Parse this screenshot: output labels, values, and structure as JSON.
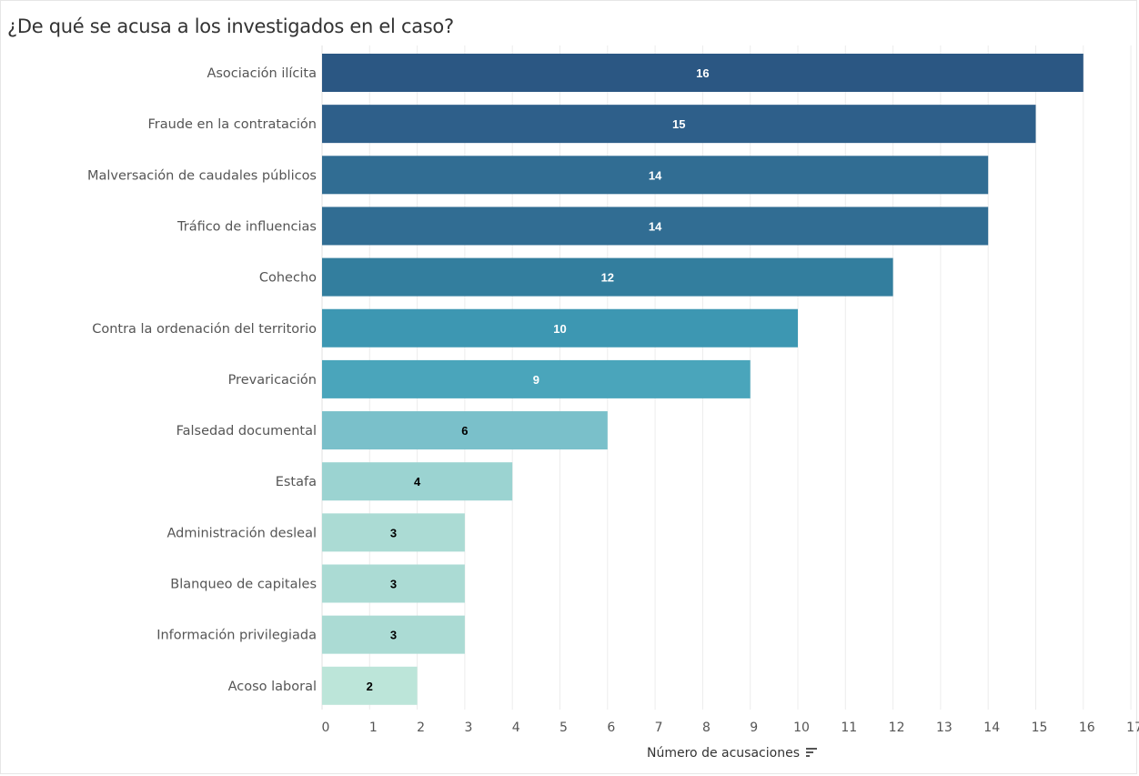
{
  "chart_data": {
    "type": "bar",
    "orientation": "horizontal",
    "title": "¿De qué se acusa a los investigados en el caso?",
    "xlabel": "Número de acusaciones",
    "ylabel": "",
    "xlim": [
      0,
      17
    ],
    "xticks": [
      0,
      1,
      2,
      3,
      4,
      5,
      6,
      7,
      8,
      9,
      10,
      11,
      12,
      13,
      14,
      15,
      16,
      17
    ],
    "grid": "vertical",
    "sort_icon": "sort-descending-icon",
    "categories": [
      "Asociación ilícita",
      "Fraude en la contratación",
      "Malversación de caudales públicos",
      "Tráfico de influencias",
      "Cohecho",
      "Contra la ordenación del territorio",
      "Prevaricación",
      "Falsedad documental",
      "Estafa",
      "Administración desleal",
      "Blanqueo de capitales",
      "Información privilegiada",
      "Acoso laboral"
    ],
    "values": [
      16,
      15,
      14,
      14,
      12,
      10,
      9,
      6,
      4,
      3,
      3,
      3,
      2
    ],
    "colors": [
      "#2b5783",
      "#2e5f8a",
      "#316d93",
      "#316d93",
      "#337e9e",
      "#3d97b2",
      "#4aa5bb",
      "#7ac0ca",
      "#9bd3d1",
      "#abdbd4",
      "#abdbd4",
      "#abdbd4",
      "#bce5d9"
    ],
    "label_colors": [
      "#ffffff",
      "#ffffff",
      "#ffffff",
      "#ffffff",
      "#ffffff",
      "#ffffff",
      "#ffffff",
      "#000000",
      "#000000",
      "#000000",
      "#000000",
      "#000000",
      "#000000"
    ]
  }
}
